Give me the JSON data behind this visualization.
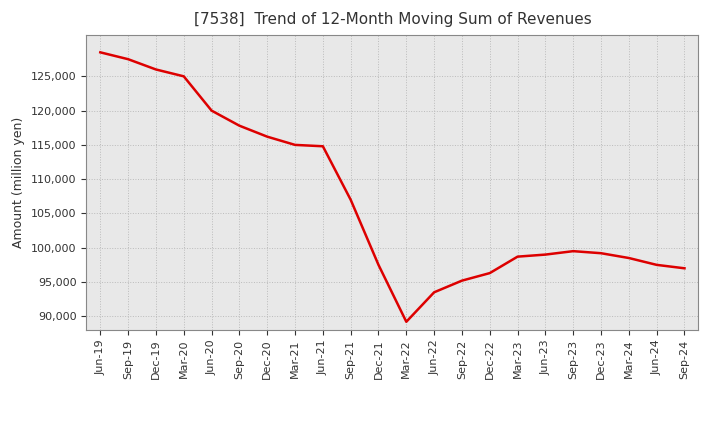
{
  "title": "[7538]  Trend of 12-Month Moving Sum of Revenues",
  "ylabel": "Amount (million yen)",
  "line_color": "#dd0000",
  "background_color": "#ffffff",
  "plot_bg_color": "#e8e8e8",
  "grid_color": "#bbbbbb",
  "ylim": [
    88000,
    131000
  ],
  "yticks": [
    90000,
    95000,
    100000,
    105000,
    110000,
    115000,
    120000,
    125000
  ],
  "x_labels": [
    "Jun-19",
    "Sep-19",
    "Dec-19",
    "Mar-20",
    "Jun-20",
    "Sep-20",
    "Dec-20",
    "Mar-21",
    "Jun-21",
    "Sep-21",
    "Dec-21",
    "Mar-22",
    "Jun-22",
    "Sep-22",
    "Dec-22",
    "Mar-23",
    "Jun-23",
    "Sep-23",
    "Dec-23",
    "Mar-24",
    "Jun-24",
    "Sep-24"
  ],
  "values": [
    128500,
    127500,
    126000,
    125000,
    120000,
    117800,
    116200,
    115000,
    114800,
    107000,
    97500,
    89200,
    93500,
    95200,
    96300,
    98700,
    99000,
    99500,
    99200,
    98500,
    97500,
    97000
  ]
}
